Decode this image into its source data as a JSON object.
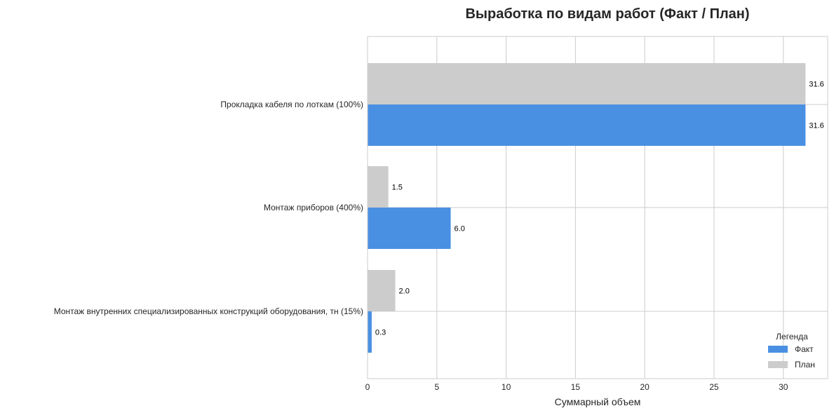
{
  "chart_data": {
    "type": "bar",
    "orientation": "horizontal",
    "title": "Выработка по видам работ (Факт / План)",
    "xlabel": "Суммарный объем",
    "ylabel": "",
    "categories": [
      "Прокладка кабеля по лоткам (100%)",
      "Монтаж приборов (400%)",
      "Монтаж внутренних специализированных конструкций оборудования, тн (15%)"
    ],
    "series": [
      {
        "name": "План",
        "values": [
          31.6,
          1.5,
          2.0
        ],
        "labels": [
          "31.6",
          "1.5",
          "2.0"
        ],
        "color": "#cccccc"
      },
      {
        "name": "Факт",
        "values": [
          31.6,
          6.0,
          0.3
        ],
        "labels": [
          "31.6",
          "6.0",
          "0.3"
        ],
        "color": "#4a90e2"
      }
    ],
    "xlim": [
      0,
      33.2
    ],
    "xticks": [
      0,
      5,
      10,
      15,
      20,
      25,
      30
    ],
    "grid": true,
    "legend": {
      "title": "Легенда",
      "placement": "lower-right",
      "entries": [
        {
          "name": "Факт",
          "color": "#4a90e2"
        },
        {
          "name": "План",
          "color": "#cccccc"
        }
      ]
    }
  }
}
